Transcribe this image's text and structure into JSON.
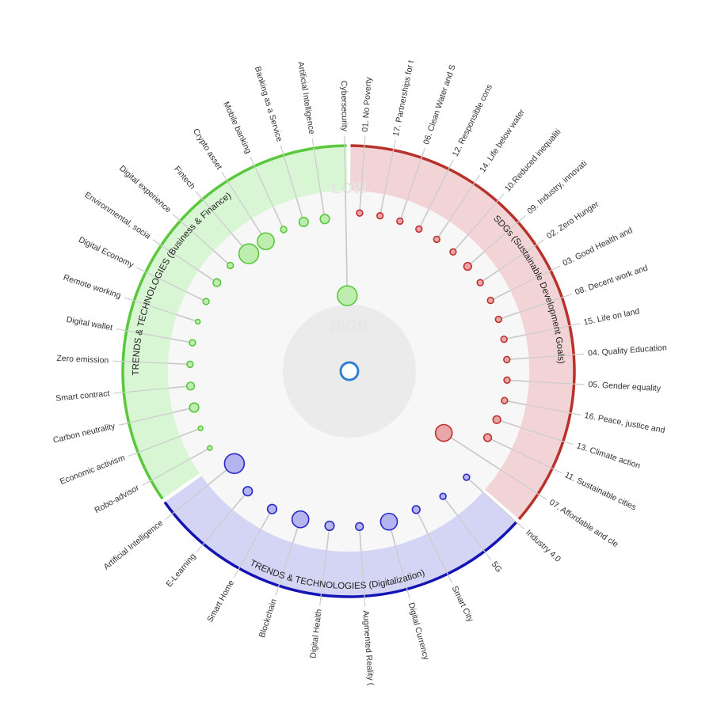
{
  "ring_words": {
    "low": "LOW",
    "high": "HIGH"
  },
  "sectors": [
    {
      "id": "sdgs",
      "title": "SDGs (Sustainable Development Goals)",
      "band_color": "#f2d4d6",
      "edge_color": "#b8322c",
      "node_fill": "#e8a6a8",
      "node_stroke": "#c0302c",
      "items": [
        {
          "label": "01. No Poverty",
          "level": 0.05,
          "size": 2
        },
        {
          "label": "17. Partnerships for t",
          "level": 0.05,
          "size": 2
        },
        {
          "label": "06. Clean Water and S",
          "level": 0.05,
          "size": 2
        },
        {
          "label": "12. Responsible cons",
          "level": 0.05,
          "size": 2
        },
        {
          "label": "14. Life below water",
          "level": 0.05,
          "size": 2
        },
        {
          "label": "10.Reduced inequaliti",
          "level": 0.05,
          "size": 2
        },
        {
          "label": "09. Industry, innovati",
          "level": 0.05,
          "size": 3
        },
        {
          "label": "02. Zero Hunger",
          "level": 0.05,
          "size": 2
        },
        {
          "label": "03. Good Health and",
          "level": 0.05,
          "size": 2
        },
        {
          "label": "08. Decent work and",
          "level": 0.05,
          "size": 2
        },
        {
          "label": "15. Life on land",
          "level": 0.05,
          "size": 2
        },
        {
          "label": "04. Quality Education",
          "level": 0.05,
          "size": 2
        },
        {
          "label": "05. Gender equality",
          "level": 0.05,
          "size": 2
        },
        {
          "label": "16. Peace, justice and",
          "level": 0.05,
          "size": 2
        },
        {
          "label": "13. Climate action",
          "level": 0.08,
          "size": 3
        },
        {
          "label": "11. Sustainable cities",
          "level": 0.1,
          "size": 3
        },
        {
          "label": "07. Affordable and cle",
          "level": 0.55,
          "size": 9
        }
      ]
    },
    {
      "id": "digitalization",
      "title": "TRENDS & TECHNOLOGIES (Digitalization)",
      "band_color": "#d4d4f4",
      "edge_color": "#1414b4",
      "node_fill": "#b4b4ee",
      "node_stroke": "#2828c8",
      "items": [
        {
          "label": "Industry 4.0",
          "level": 0.05,
          "size": 2
        },
        {
          "label": "5G",
          "level": 0.07,
          "size": 2
        },
        {
          "label": "Smart City",
          "level": 0.1,
          "size": 3
        },
        {
          "label": "Digital Currency",
          "level": 0.08,
          "size": 9
        },
        {
          "label": "Augmented Reality (",
          "level": 0.08,
          "size": 3
        },
        {
          "label": "Digital Health",
          "level": 0.08,
          "size": 4
        },
        {
          "label": "Blockchain",
          "level": 0.08,
          "size": 9
        },
        {
          "label": "Smart Home",
          "level": 0.06,
          "size": 4
        },
        {
          "label": "E-Learning",
          "level": 0.07,
          "size": 4
        },
        {
          "label": "Artificial Intelligence",
          "level": 0.18,
          "size": 11
        }
      ]
    },
    {
      "id": "business",
      "title": "TRENDS & TECHNOLOGIES (Business & Finance)",
      "band_color": "#d8f5d4",
      "edge_color": "#5ac83c",
      "node_fill": "#bdeeb0",
      "node_stroke": "#5ac83c",
      "items": [
        {
          "label": "Robo-advisor",
          "level": 0.05,
          "size": 1
        },
        {
          "label": "Economic activism",
          "level": 0.05,
          "size": 1
        },
        {
          "label": "Carbon neutrality",
          "level": 0.05,
          "size": 4
        },
        {
          "label": "Smart contract",
          "level": 0.05,
          "size": 3
        },
        {
          "label": "Zero emission",
          "level": 0.05,
          "size": 2
        },
        {
          "label": "Digital wallet",
          "level": 0.05,
          "size": 2
        },
        {
          "label": "Remote working",
          "level": 0.05,
          "size": 1
        },
        {
          "label": "Digital Economy",
          "level": 0.05,
          "size": 2
        },
        {
          "label": "Environmental, socia",
          "level": 0.05,
          "size": 3
        },
        {
          "label": "Digital experience",
          "level": 0.05,
          "size": 2
        },
        {
          "label": "Fintech",
          "level": 0.1,
          "size": 11
        },
        {
          "label": "Crypto asset",
          "level": 0.1,
          "size": 9
        },
        {
          "label": "Mobile banking",
          "level": 0.08,
          "size": 2
        },
        {
          "label": "Banking as a Service",
          "level": 0.08,
          "size": 4
        },
        {
          "label": "Artificial Intelligence",
          "level": 0.1,
          "size": 4
        },
        {
          "label": "Cybersecurity",
          "level": 0.97,
          "size": 11
        }
      ]
    }
  ]
}
